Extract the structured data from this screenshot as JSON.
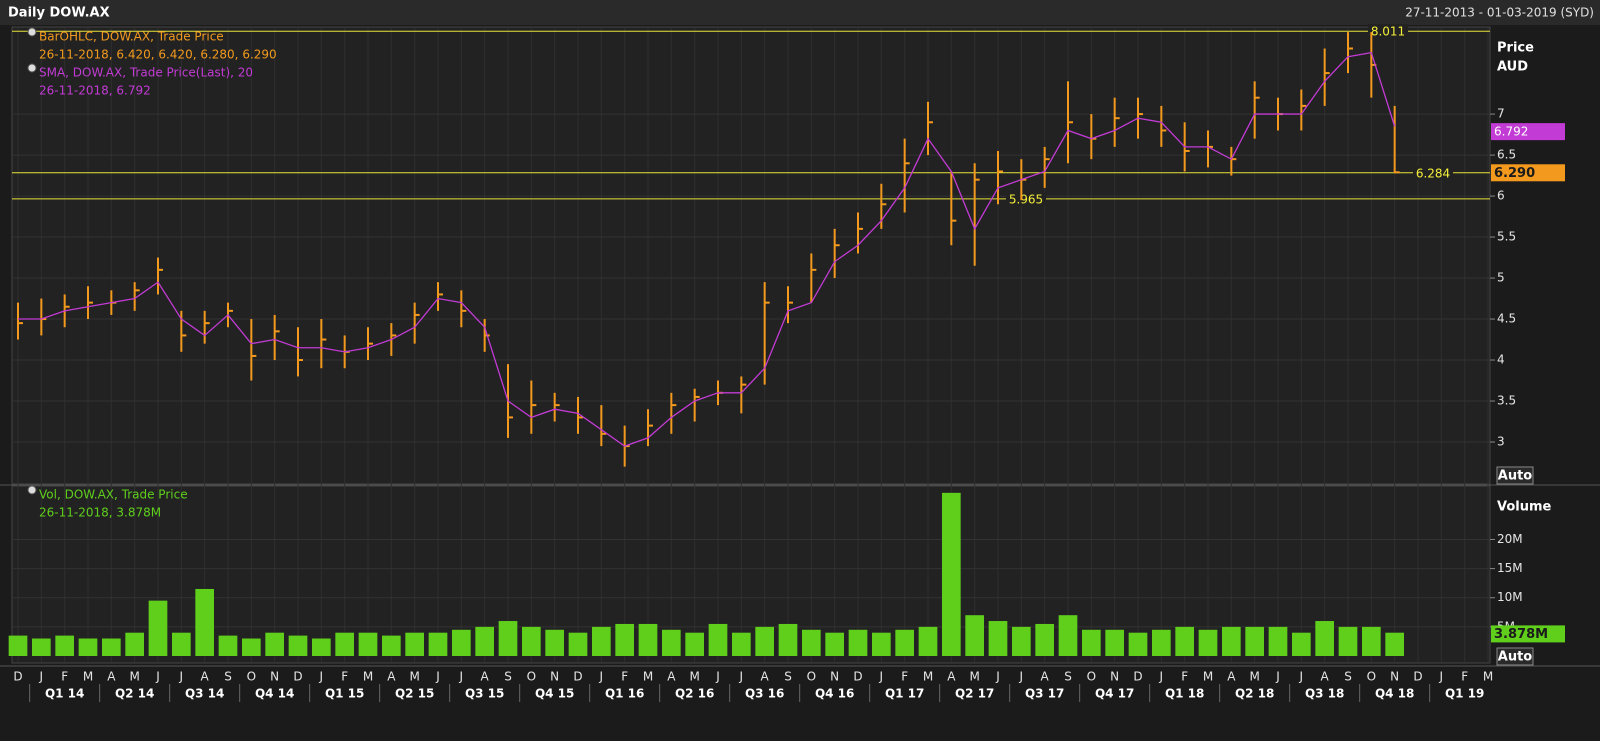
{
  "header": {
    "title": "Daily DOW.AX",
    "range": "27-11-2013 - 01-03-2019 (SYD)"
  },
  "axis": {
    "months": [
      "D",
      "J",
      "F",
      "M",
      "A",
      "M",
      "J",
      "J",
      "A",
      "S",
      "O",
      "N",
      "D",
      "J",
      "F",
      "M",
      "A",
      "M",
      "J",
      "J",
      "A",
      "S",
      "O",
      "N",
      "D",
      "J",
      "F",
      "M",
      "A",
      "M",
      "J",
      "J",
      "A",
      "S",
      "O",
      "N",
      "D",
      "J",
      "F",
      "M",
      "A",
      "M",
      "J",
      "J",
      "A",
      "S",
      "O",
      "N",
      "D",
      "J",
      "F",
      "M",
      "A",
      "M",
      "J",
      "J",
      "A",
      "S",
      "O",
      "N",
      "D",
      "J",
      "F",
      "M"
    ],
    "quarters": [
      "Q1 14",
      "Q2 14",
      "Q3 14",
      "Q4 14",
      "Q1 15",
      "Q2 15",
      "Q3 15",
      "Q4 15",
      "Q1 16",
      "Q2 16",
      "Q3 16",
      "Q4 16",
      "Q1 17",
      "Q2 17",
      "Q3 17",
      "Q4 17",
      "Q1 18",
      "Q2 18",
      "Q3 18",
      "Q4 18",
      "Q1 19"
    ]
  },
  "chart_data": [
    {
      "type": "ohlc",
      "y_label": "Price",
      "y_unit": "AUD",
      "scale_mode": "Auto",
      "ylim": [
        2.5,
        8.05
      ],
      "yticks": [
        3,
        3.5,
        4,
        4.5,
        5,
        5.5,
        6,
        6.5,
        7
      ],
      "grid": true,
      "series": [
        {
          "name": "BarOHLC, DOW.AX, Trade Price",
          "last": "26-11-2018, 6.420, 6.420, 6.280, 6.290",
          "color": "#f39a1e",
          "high": [
            4.7,
            4.75,
            4.8,
            4.9,
            4.85,
            4.95,
            5.25,
            4.6,
            4.6,
            4.7,
            4.5,
            4.55,
            4.4,
            4.5,
            4.3,
            4.4,
            4.45,
            4.7,
            4.95,
            4.85,
            4.5,
            3.95,
            3.75,
            3.6,
            3.55,
            3.45,
            3.2,
            3.4,
            3.6,
            3.65,
            3.75,
            3.8,
            4.95,
            4.9,
            5.3,
            5.6,
            5.8,
            6.15,
            6.7,
            7.15,
            6.3,
            6.4,
            6.55,
            6.45,
            6.6,
            7.4,
            7.0,
            7.2,
            7.2,
            7.1,
            6.9,
            6.8,
            6.6,
            7.4,
            7.2,
            7.3,
            7.8,
            8.0,
            8.0,
            7.1,
            null,
            null,
            null,
            null
          ],
          "low": [
            4.25,
            4.3,
            4.4,
            4.5,
            4.55,
            4.6,
            4.8,
            4.1,
            4.2,
            4.4,
            3.75,
            4.0,
            3.8,
            3.9,
            3.9,
            4.0,
            4.05,
            4.2,
            4.6,
            4.4,
            4.1,
            3.05,
            3.1,
            3.25,
            3.1,
            2.95,
            2.7,
            2.95,
            3.1,
            3.25,
            3.45,
            3.35,
            3.7,
            4.45,
            4.7,
            5.0,
            5.3,
            5.6,
            5.8,
            6.5,
            5.4,
            5.15,
            5.9,
            5.95,
            6.1,
            6.4,
            6.45,
            6.6,
            6.7,
            6.6,
            6.3,
            6.35,
            6.25,
            6.7,
            6.8,
            6.8,
            7.1,
            7.5,
            7.2,
            6.28,
            null,
            null,
            null,
            null
          ],
          "close": [
            4.45,
            4.5,
            4.65,
            4.7,
            4.7,
            4.85,
            5.1,
            4.3,
            4.45,
            4.6,
            4.05,
            4.35,
            4.0,
            4.25,
            4.1,
            4.2,
            4.3,
            4.55,
            4.8,
            4.6,
            4.3,
            3.3,
            3.45,
            3.45,
            3.3,
            3.1,
            2.95,
            3.2,
            3.45,
            3.55,
            3.6,
            3.7,
            4.7,
            4.7,
            5.1,
            5.4,
            5.6,
            5.9,
            6.4,
            6.9,
            5.7,
            6.2,
            6.3,
            6.2,
            6.45,
            6.9,
            6.7,
            6.95,
            7.0,
            6.8,
            6.55,
            6.6,
            6.45,
            7.2,
            7.0,
            7.1,
            7.5,
            7.8,
            7.6,
            6.29,
            null,
            null,
            null,
            null
          ]
        },
        {
          "name": "SMA, DOW.AX, Trade Price(Last),  20",
          "last": "26-11-2018, 6.792",
          "color": "#c23bd4",
          "values": [
            4.5,
            4.5,
            4.6,
            4.65,
            4.7,
            4.75,
            4.95,
            4.5,
            4.3,
            4.55,
            4.2,
            4.25,
            4.15,
            4.15,
            4.1,
            4.15,
            4.25,
            4.4,
            4.75,
            4.7,
            4.4,
            3.5,
            3.3,
            3.4,
            3.35,
            3.15,
            2.95,
            3.05,
            3.3,
            3.5,
            3.6,
            3.6,
            3.9,
            4.6,
            4.7,
            5.2,
            5.4,
            5.7,
            6.1,
            6.7,
            6.3,
            5.6,
            6.1,
            6.2,
            6.3,
            6.8,
            6.7,
            6.8,
            6.95,
            6.9,
            6.6,
            6.6,
            6.45,
            7.0,
            7.0,
            7.0,
            7.4,
            7.7,
            7.75,
            6.85,
            null,
            null,
            null,
            null
          ]
        }
      ],
      "hlines": [
        8.011,
        6.284,
        5.965
      ],
      "markers": [
        {
          "value": 6.792,
          "color": "#c23bd4"
        },
        {
          "value": 6.29,
          "label": "6.290",
          "color": "#f39a1e"
        }
      ]
    },
    {
      "type": "bar",
      "y_label": "Volume",
      "scale_mode": "Auto",
      "ylim": [
        0,
        29000000
      ],
      "yticks": [
        {
          "value": 5000000,
          "label": "5M"
        },
        {
          "value": 10000000,
          "label": "10M"
        },
        {
          "value": 15000000,
          "label": "15M"
        },
        {
          "value": 20000000,
          "label": "20M"
        }
      ],
      "grid": true,
      "series": [
        {
          "name": "Vol, DOW.AX, Trade Price",
          "last": "26-11-2018, 3.878M",
          "color": "#5fcf1c",
          "values": [
            3500000,
            3000000,
            3500000,
            3000000,
            3000000,
            4000000,
            9500000,
            4000000,
            11500000,
            3500000,
            3000000,
            4000000,
            3500000,
            3000000,
            4000000,
            4000000,
            3500000,
            4000000,
            4000000,
            4500000,
            5000000,
            6000000,
            5000000,
            4500000,
            4000000,
            5000000,
            5500000,
            5500000,
            4500000,
            4000000,
            5500000,
            4000000,
            5000000,
            5500000,
            4500000,
            4000000,
            4500000,
            4000000,
            4500000,
            5000000,
            28000000,
            7000000,
            6000000,
            5000000,
            5500000,
            7000000,
            4500000,
            4500000,
            4000000,
            4500000,
            5000000,
            4500000,
            5000000,
            5000000,
            5000000,
            4000000,
            6000000,
            5000000,
            5000000,
            4000000,
            null,
            null,
            null,
            null
          ]
        }
      ],
      "markers": [
        {
          "value": 3878000,
          "label": "3.878M",
          "color": "#5fcf1c"
        }
      ]
    }
  ]
}
